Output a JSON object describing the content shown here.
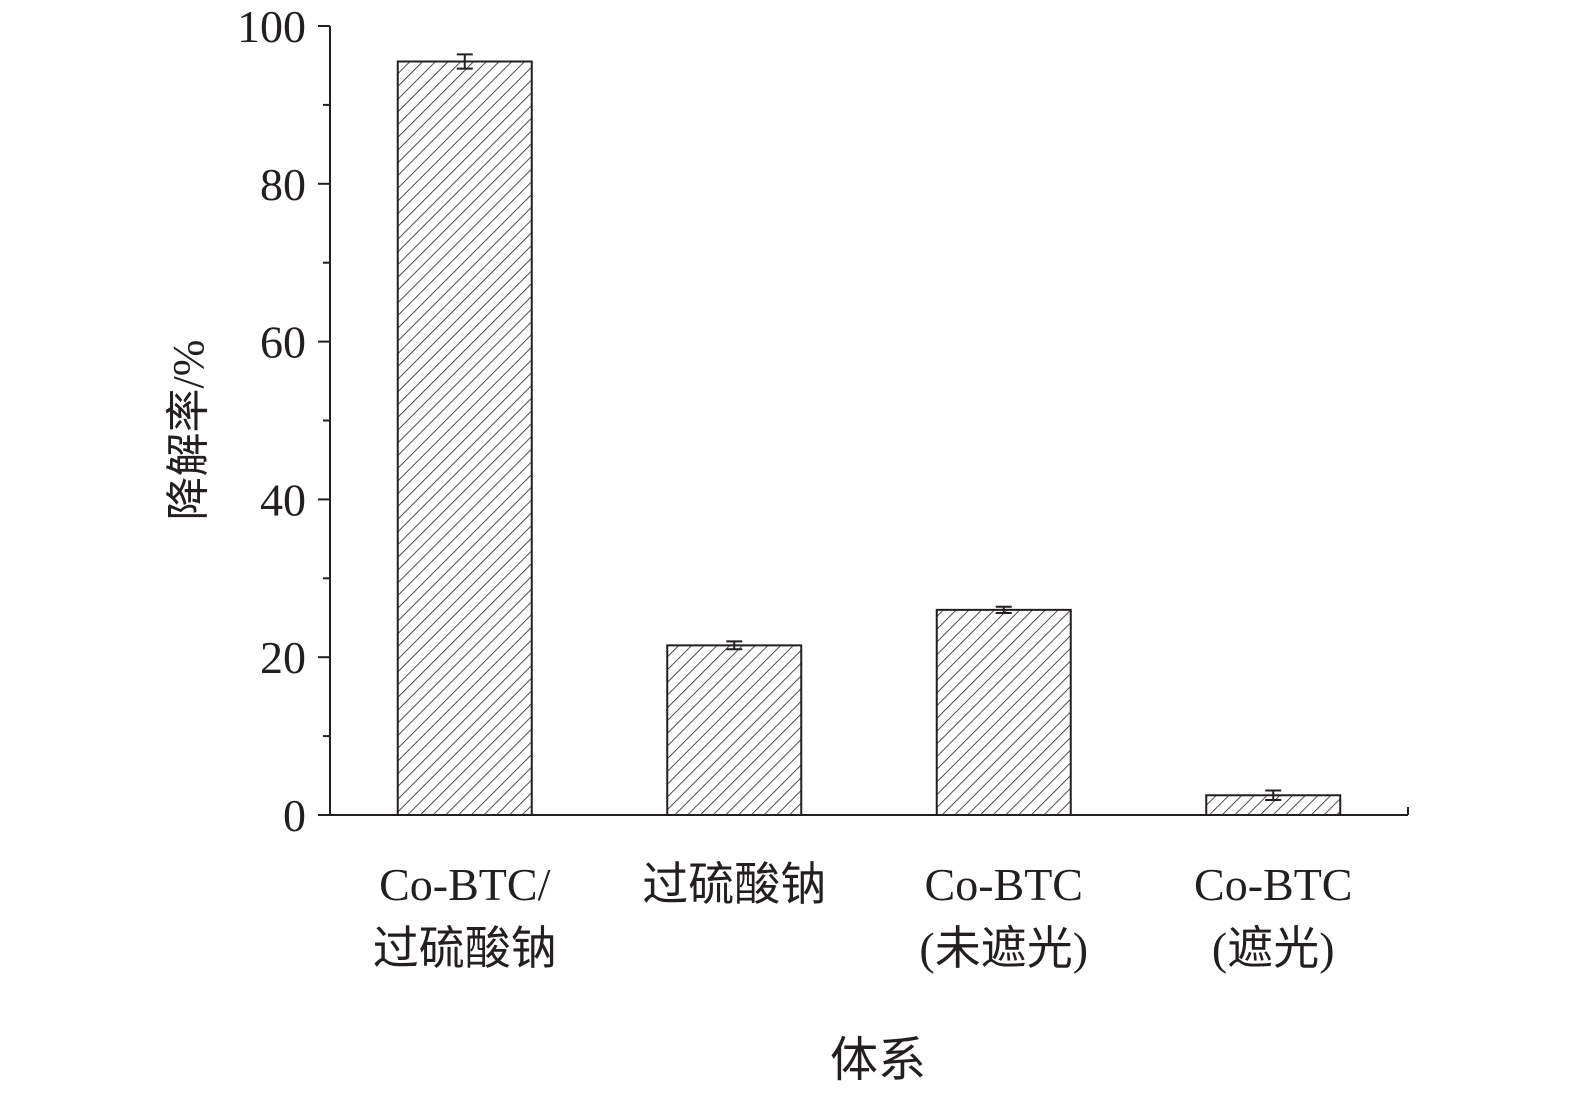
{
  "chart_data": {
    "type": "bar",
    "title": "",
    "xlabel": "体系",
    "ylabel": "降解率/%",
    "ylim": [
      0,
      100
    ],
    "yticks": [
      "0",
      "20",
      "40",
      "60",
      "80",
      "100"
    ],
    "minor_tick_step": 10,
    "grid": false,
    "legend": "none",
    "categories": [
      {
        "lines": [
          "Co-BTC/",
          "过硫酸钠"
        ]
      },
      {
        "lines": [
          "过硫酸钠"
        ]
      },
      {
        "lines": [
          "Co-BTC",
          "(未遮光)"
        ]
      },
      {
        "lines": [
          "Co-BTC",
          "(遮光)"
        ]
      }
    ],
    "values": [
      95.5,
      21.5,
      26.0,
      2.5
    ],
    "errors": [
      0.9,
      0.5,
      0.4,
      0.6
    ],
    "bar_fill": "diagonal hatch",
    "colors": {
      "stroke": "#231f20",
      "background": "#ffffff"
    }
  }
}
